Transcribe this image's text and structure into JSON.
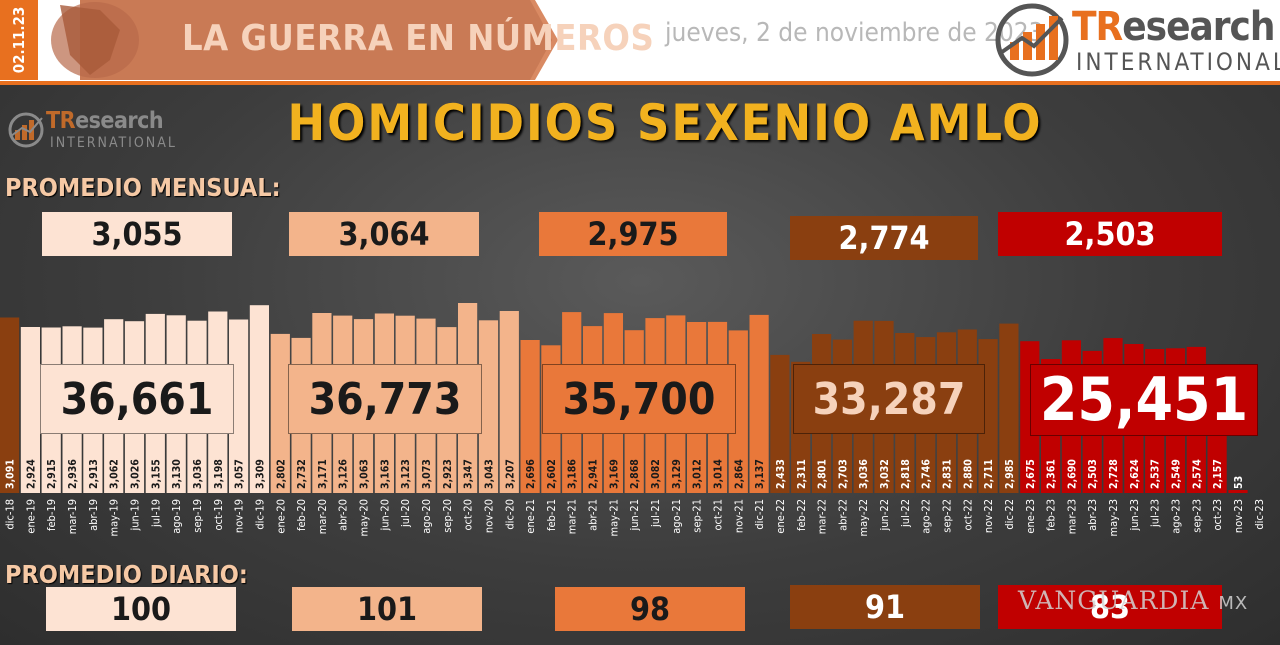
{
  "header": {
    "date_badge": "02.11.23",
    "banner_title": "LA GUERRA EN NÚMEROS",
    "date_text": "jueves, 2 de noviembre de 2023",
    "logo_tr": "TR",
    "logo_esearch": "esearch",
    "logo_international": "INTERNATIONAL"
  },
  "title": "HOMICIDIOS SEXENIO AMLO",
  "labels": {
    "monthly": "PROMEDIO MENSUAL:",
    "daily": "PROMEDIO DIARIO:"
  },
  "colors": {
    "y2019": "#fde3d3",
    "y2020": "#f3b48b",
    "y2021": "#e9783a",
    "y2022": "#8a3f10",
    "y2023": "#c00000",
    "dec2018": "#8a3f10",
    "title": "#f2b21f",
    "accent": "#e8701f"
  },
  "summaries": [
    {
      "year": "2019",
      "monthly": "3,055",
      "total": "36,661",
      "daily": "100"
    },
    {
      "year": "2020",
      "monthly": "3,064",
      "total": "36,773",
      "daily": "101"
    },
    {
      "year": "2021",
      "monthly": "2,975",
      "total": "35,700",
      "daily": "98"
    },
    {
      "year": "2022",
      "monthly": "2,774",
      "total": "33,287",
      "daily": "91"
    },
    {
      "year": "2023",
      "monthly": "2,503",
      "total": "25,451",
      "daily": "83"
    }
  ],
  "watermark": {
    "text": "VANGUARDIA",
    "suffix": "MX"
  },
  "chart_data": {
    "type": "bar",
    "title": "HOMICIDIOS SEXENIO AMLO",
    "xlabel": "",
    "ylabel": "",
    "categories": [
      "dic-18",
      "ene-19",
      "feb-19",
      "mar-19",
      "abr-19",
      "may-19",
      "jun-19",
      "jul-19",
      "ago-19",
      "sep-19",
      "oct-19",
      "nov-19",
      "dic-19",
      "ene-20",
      "feb-20",
      "mar-20",
      "abr-20",
      "may-20",
      "jun-20",
      "jul-20",
      "ago-20",
      "sep-20",
      "oct-20",
      "nov-20",
      "dic-20",
      "ene-21",
      "feb-21",
      "mar-21",
      "abr-21",
      "may-21",
      "jun-21",
      "jul-21",
      "ago-21",
      "sep-21",
      "oct-21",
      "nov-21",
      "dic-21",
      "ene-22",
      "feb-22",
      "mar-22",
      "abr-22",
      "may-22",
      "jun-22",
      "jul-22",
      "ago-22",
      "sep-22",
      "oct-22",
      "nov-22",
      "dic-22",
      "ene-23",
      "feb-23",
      "mar-23",
      "abr-23",
      "may-23",
      "jun-23",
      "jul-23",
      "ago-23",
      "sep-23",
      "oct-23",
      "nov-23",
      "dic-23"
    ],
    "values": [
      3091,
      2924,
      2915,
      2936,
      2913,
      3062,
      3026,
      3155,
      3130,
      3036,
      3198,
      3057,
      3309,
      2802,
      2732,
      3171,
      3126,
      3063,
      3163,
      3123,
      3073,
      2923,
      3347,
      3043,
      3207,
      2696,
      2602,
      3186,
      2941,
      3169,
      2868,
      3082,
      3129,
      3012,
      3014,
      2864,
      3137,
      2433,
      2311,
      2801,
      2703,
      3036,
      3032,
      2818,
      2746,
      2831,
      2880,
      2711,
      2985,
      2675,
      2361,
      2690,
      2503,
      2728,
      2624,
      2537,
      2549,
      2574,
      2157,
      53,
      null
    ],
    "labels": [
      "3,091",
      "2,924",
      "2,915",
      "2,936",
      "2,913",
      "3,062",
      "3,026",
      "3,155",
      "3,130",
      "3,036",
      "3,198",
      "3,057",
      "3,309",
      "2,802",
      "2,732",
      "3,171",
      "3,126",
      "3,063",
      "3,163",
      "3,123",
      "3,073",
      "2,923",
      "3,347",
      "3,043",
      "3,207",
      "2,696",
      "2,602",
      "3,186",
      "2,941",
      "3,169",
      "2,868",
      "3,082",
      "3,129",
      "3,012",
      "3,014",
      "2,864",
      "3,137",
      "2,433",
      "2,311",
      "2,801",
      "2,703",
      "3,036",
      "3,032",
      "2,818",
      "2,746",
      "2,831",
      "2,880",
      "2,711",
      "2,985",
      "2,675",
      "2,361",
      "2,690",
      "2,503",
      "2,728",
      "2,624",
      "2,537",
      "2,549",
      "2,574",
      "2,157",
      "53",
      ""
    ],
    "ylim": [
      0,
      3400
    ],
    "grid": false,
    "legend": "none"
  }
}
